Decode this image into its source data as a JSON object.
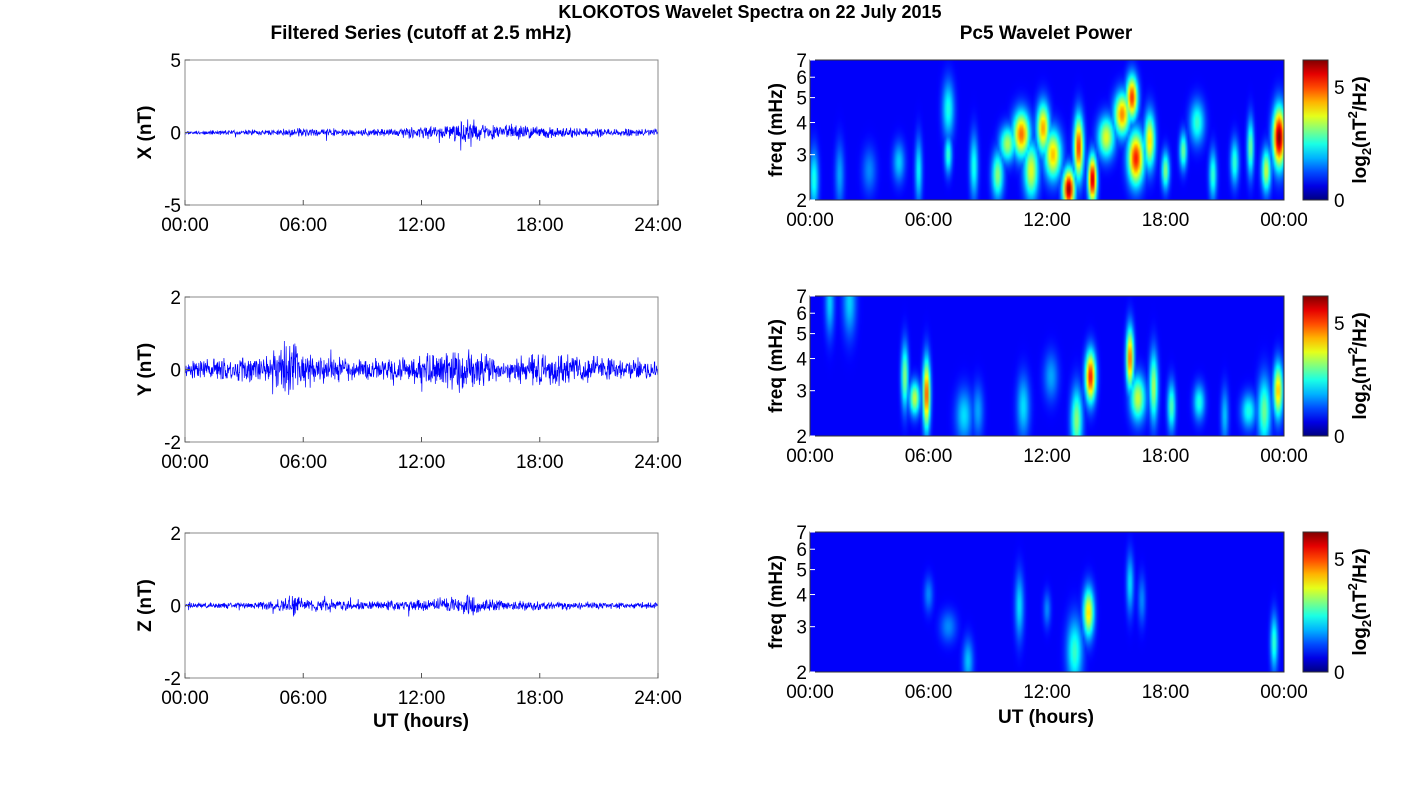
{
  "suptitle": "KLOKOTOS Wavelet Spectra on 22 July 2015",
  "left_title": "Filtered Series (cutoff at 2.5 mHz)",
  "right_title": "Pc5 Wavelet Power",
  "x_label": "UT (hours)",
  "chart_data": [
    {
      "type": "line",
      "panel": "X filtered series",
      "ylabel": "X (nT)",
      "ylim": [
        -5,
        5
      ],
      "yticks": [
        "5",
        "0",
        "-5"
      ],
      "xlim_hours": [
        0,
        24
      ],
      "xticks": [
        "00:00",
        "06:00",
        "12:00",
        "18:00",
        "24:00"
      ],
      "color": "#0000ff",
      "amplitude_envelope": {
        "hours": [
          0,
          2,
          4,
          5,
          6,
          8,
          10,
          11,
          12,
          13,
          14,
          14.5,
          15,
          16,
          17,
          18,
          19,
          20,
          21,
          22,
          23,
          24
        ],
        "amplitude": [
          0.15,
          0.2,
          0.2,
          0.35,
          0.35,
          0.25,
          0.3,
          0.45,
          0.5,
          0.55,
          0.8,
          1.2,
          0.7,
          0.6,
          0.65,
          0.45,
          0.4,
          0.35,
          0.35,
          0.3,
          0.35,
          0.3
        ]
      }
    },
    {
      "type": "line",
      "panel": "Y filtered series",
      "ylabel": "Y (nT)",
      "ylim": [
        -2,
        2
      ],
      "yticks": [
        "2",
        "0",
        "-2"
      ],
      "xlim_hours": [
        0,
        24
      ],
      "xticks": [
        "00:00",
        "06:00",
        "12:00",
        "18:00",
        "24:00"
      ],
      "color": "#0000ff",
      "amplitude_envelope": {
        "hours": [
          0,
          1,
          2,
          3,
          4,
          5,
          5.5,
          6,
          7,
          8,
          9,
          10,
          11,
          12,
          13,
          14,
          14.5,
          15,
          16,
          17,
          18,
          19,
          20,
          21,
          22,
          23,
          24
        ],
        "amplitude": [
          0.25,
          0.3,
          0.4,
          0.4,
          0.45,
          0.7,
          0.9,
          0.6,
          0.5,
          0.4,
          0.35,
          0.35,
          0.4,
          0.45,
          0.55,
          0.7,
          0.75,
          0.6,
          0.5,
          0.5,
          0.55,
          0.5,
          0.4,
          0.4,
          0.35,
          0.35,
          0.3
        ]
      }
    },
    {
      "type": "line",
      "panel": "Z filtered series",
      "ylabel": "Z (nT)",
      "ylim": [
        -2,
        2
      ],
      "yticks": [
        "2",
        "0",
        "-2"
      ],
      "xlim_hours": [
        0,
        24
      ],
      "xticks": [
        "00:00",
        "06:00",
        "12:00",
        "18:00",
        "24:00"
      ],
      "color": "#0000ff",
      "amplitude_envelope": {
        "hours": [
          0,
          2,
          4,
          5,
          5.5,
          6,
          7,
          8,
          10,
          12,
          13,
          14,
          14.5,
          15,
          16,
          18,
          20,
          22,
          24
        ],
        "amplitude": [
          0.08,
          0.1,
          0.12,
          0.2,
          0.4,
          0.2,
          0.25,
          0.15,
          0.15,
          0.2,
          0.25,
          0.25,
          0.4,
          0.2,
          0.2,
          0.15,
          0.12,
          0.1,
          0.1
        ]
      }
    },
    {
      "type": "heatmap",
      "panel": "X wavelet power",
      "ylabel": "freq (mHz)",
      "yscale": "log",
      "ylim": [
        2,
        7
      ],
      "yticks": [
        "2",
        "3",
        "4",
        "5",
        "6",
        "7"
      ],
      "xlim_hours": [
        0,
        24
      ],
      "xticks": [
        "00:00",
        "06:00",
        "12:00",
        "18:00",
        "00:00"
      ],
      "colorbar": {
        "label_base": "log",
        "label_sub": "2",
        "label_mid": "(nT",
        "label_sup": "2",
        "label_end": "/Hz)",
        "range": [
          0,
          6.2
        ],
        "ticks": [
          "5",
          "0"
        ],
        "colormap": "jet"
      },
      "features": [
        {
          "t": 0.2,
          "f": 2.4,
          "value": 2.0
        },
        {
          "t": 1.5,
          "f": 2.5,
          "value": 1.2
        },
        {
          "t": 3.0,
          "f": 2.6,
          "value": 1.0
        },
        {
          "t": 4.5,
          "f": 2.8,
          "value": 1.5
        },
        {
          "t": 5.5,
          "f": 2.6,
          "value": 1.8
        },
        {
          "t": 7.0,
          "f": 3.0,
          "value": 2.2
        },
        {
          "t": 7.0,
          "f": 4.5,
          "value": 2.0
        },
        {
          "t": 8.3,
          "f": 2.7,
          "value": 2.0
        },
        {
          "t": 9.5,
          "f": 2.5,
          "value": 2.8
        },
        {
          "t": 10.0,
          "f": 3.3,
          "value": 3.0
        },
        {
          "t": 10.7,
          "f": 3.6,
          "value": 4.6
        },
        {
          "t": 11.2,
          "f": 2.6,
          "value": 3.4
        },
        {
          "t": 11.8,
          "f": 3.8,
          "value": 4.2
        },
        {
          "t": 12.3,
          "f": 3.0,
          "value": 4.0
        },
        {
          "t": 13.1,
          "f": 2.2,
          "value": 6.0
        },
        {
          "t": 13.6,
          "f": 3.2,
          "value": 5.0
        },
        {
          "t": 14.3,
          "f": 2.4,
          "value": 5.8
        },
        {
          "t": 15.0,
          "f": 3.5,
          "value": 3.4
        },
        {
          "t": 15.8,
          "f": 4.3,
          "value": 4.4
        },
        {
          "t": 16.3,
          "f": 5.0,
          "value": 5.0
        },
        {
          "t": 16.5,
          "f": 2.9,
          "value": 5.2
        },
        {
          "t": 17.2,
          "f": 3.4,
          "value": 3.8
        },
        {
          "t": 18.0,
          "f": 2.6,
          "value": 2.8
        },
        {
          "t": 18.9,
          "f": 3.1,
          "value": 2.6
        },
        {
          "t": 19.6,
          "f": 4.0,
          "value": 2.2
        },
        {
          "t": 20.4,
          "f": 2.5,
          "value": 2.2
        },
        {
          "t": 21.5,
          "f": 2.8,
          "value": 2.2
        },
        {
          "t": 22.3,
          "f": 3.2,
          "value": 2.6
        },
        {
          "t": 23.1,
          "f": 2.6,
          "value": 3.2
        },
        {
          "t": 23.75,
          "f": 3.5,
          "value": 6.2
        }
      ]
    },
    {
      "type": "heatmap",
      "panel": "Y wavelet power",
      "ylabel": "freq (mHz)",
      "yscale": "log",
      "ylim": [
        2,
        7
      ],
      "yticks": [
        "2",
        "3",
        "4",
        "5",
        "6",
        "7"
      ],
      "xlim_hours": [
        0,
        24
      ],
      "xticks": [
        "00:00",
        "06:00",
        "12:00",
        "18:00",
        "00:00"
      ],
      "colorbar": {
        "label_base": "log",
        "label_sub": "2",
        "label_mid": "(nT",
        "label_sup": "2",
        "label_end": "/Hz)",
        "range": [
          0,
          6.2
        ],
        "ticks": [
          "5",
          "0"
        ],
        "colormap": "jet"
      },
      "features": [
        {
          "t": 1.0,
          "f": 6.6,
          "value": 1.5
        },
        {
          "t": 2.0,
          "f": 6.6,
          "value": 1.5
        },
        {
          "t": 4.8,
          "f": 3.4,
          "value": 2.8
        },
        {
          "t": 5.3,
          "f": 2.8,
          "value": 3.2
        },
        {
          "t": 5.9,
          "f": 2.9,
          "value": 4.8
        },
        {
          "t": 7.8,
          "f": 2.4,
          "value": 1.6
        },
        {
          "t": 8.5,
          "f": 2.5,
          "value": 1.2
        },
        {
          "t": 10.8,
          "f": 2.6,
          "value": 1.6
        },
        {
          "t": 12.2,
          "f": 3.4,
          "value": 1.2
        },
        {
          "t": 13.5,
          "f": 2.3,
          "value": 2.8
        },
        {
          "t": 14.2,
          "f": 3.4,
          "value": 5.2
        },
        {
          "t": 16.2,
          "f": 4.0,
          "value": 4.6
        },
        {
          "t": 16.6,
          "f": 2.8,
          "value": 3.2
        },
        {
          "t": 17.4,
          "f": 3.1,
          "value": 3.0
        },
        {
          "t": 18.3,
          "f": 2.6,
          "value": 2.4
        },
        {
          "t": 19.7,
          "f": 2.7,
          "value": 2.0
        },
        {
          "t": 21.0,
          "f": 2.4,
          "value": 1.4
        },
        {
          "t": 22.2,
          "f": 2.5,
          "value": 2.0
        },
        {
          "t": 23.0,
          "f": 2.5,
          "value": 2.6
        },
        {
          "t": 23.7,
          "f": 3.0,
          "value": 4.0
        }
      ]
    },
    {
      "type": "heatmap",
      "panel": "Z wavelet power",
      "ylabel": "freq (mHz)",
      "yscale": "log",
      "ylim": [
        2,
        7
      ],
      "yticks": [
        "2",
        "3",
        "4",
        "5",
        "6",
        "7"
      ],
      "xlim_hours": [
        0,
        24
      ],
      "xticks": [
        "00:00",
        "06:00",
        "12:00",
        "18:00",
        "00:00"
      ],
      "colorbar": {
        "label_base": "log",
        "label_sub": "2",
        "label_mid": "(nT",
        "label_sup": "2",
        "label_end": "/Hz)",
        "range": [
          0,
          6.2
        ],
        "ticks": [
          "5",
          "0"
        ],
        "colormap": "jet"
      },
      "features": [
        {
          "t": 6.0,
          "f": 4.0,
          "value": 1.0
        },
        {
          "t": 7.0,
          "f": 3.0,
          "value": 1.0
        },
        {
          "t": 8.0,
          "f": 2.2,
          "value": 1.4
        },
        {
          "t": 10.6,
          "f": 3.6,
          "value": 1.6
        },
        {
          "t": 12.0,
          "f": 3.5,
          "value": 1.0
        },
        {
          "t": 13.4,
          "f": 2.4,
          "value": 2.2
        },
        {
          "t": 14.1,
          "f": 3.4,
          "value": 3.8
        },
        {
          "t": 16.2,
          "f": 4.4,
          "value": 1.6
        },
        {
          "t": 16.8,
          "f": 3.8,
          "value": 1.0
        },
        {
          "t": 23.5,
          "f": 2.6,
          "value": 2.2
        }
      ]
    }
  ]
}
